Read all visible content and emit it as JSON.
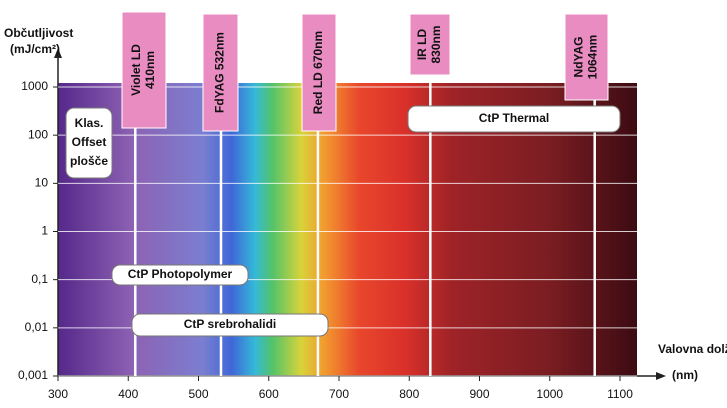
{
  "chart_data": {
    "type": "spectrum",
    "y_label": "Občutljivost",
    "y_unit": "(mJ/cm²)",
    "x_label": "Valovna dolžina",
    "x_unit": "(nm)",
    "log_y": true,
    "grid": true,
    "xlim": [
      300,
      1150
    ],
    "ylim": [
      0.001,
      1000
    ],
    "xticks": [
      300,
      400,
      500,
      600,
      700,
      800,
      900,
      1000,
      1100
    ],
    "yticks": [
      {
        "value": 0.001,
        "label": "0,001"
      },
      {
        "value": 0.01,
        "label": "0,01"
      },
      {
        "value": 0.1,
        "label": "0,1"
      },
      1,
      10,
      100,
      1000
    ],
    "lasers": [
      {
        "name": "Violet LD",
        "label": "410nm",
        "wavelength": 410
      },
      {
        "name": "FdYAG 532nm",
        "wavelength": 532
      },
      {
        "name": "Red LD 670nm",
        "wavelength": 670
      },
      {
        "name": "IR LD",
        "label": "830nm",
        "wavelength": 830
      },
      {
        "name": "NdYAG",
        "label": "1064nm",
        "wavelength": 1064
      }
    ],
    "laser_color": "#e98cc2",
    "annotations": [
      [
        "Klas.",
        "Offset",
        "plošče"
      ],
      [
        "CtP Thermal"
      ],
      [
        "CtP Photopolymer"
      ],
      [
        "CtP srebrohalidi"
      ]
    ]
  }
}
